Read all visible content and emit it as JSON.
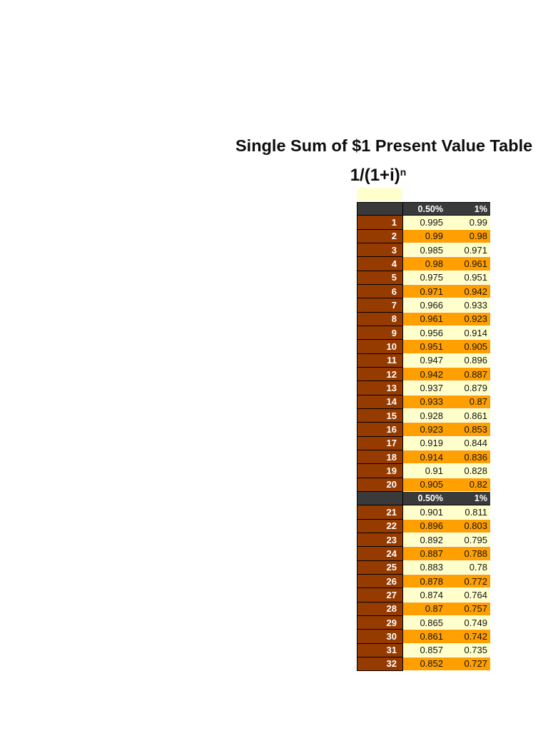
{
  "page": {
    "title": "Single Sum of $1 Present Value Table",
    "formula_base": "1/(1+i)",
    "formula_exponent": "n"
  },
  "colors": {
    "page_bg": "#FFFFFF",
    "header_bg": "#3A3A3A",
    "row_number_bg": "#963B00",
    "row_cream_bg": "#FFFFCC",
    "row_orange_bg": "#FFA000",
    "header_text": "#FFFFFF",
    "value_text": "#111111"
  },
  "table": {
    "column_headers": [
      "0.50%",
      "1%"
    ],
    "repeat_header_after": 20,
    "rows": [
      {
        "period": "1",
        "values": [
          "0.995",
          "0.99"
        ]
      },
      {
        "period": "2",
        "values": [
          "0.99",
          "0.98"
        ]
      },
      {
        "period": "3",
        "values": [
          "0.985",
          "0.971"
        ]
      },
      {
        "period": "4",
        "values": [
          "0.98",
          "0.961"
        ]
      },
      {
        "period": "5",
        "values": [
          "0.975",
          "0.951"
        ]
      },
      {
        "period": "6",
        "values": [
          "0.971",
          "0.942"
        ]
      },
      {
        "period": "7",
        "values": [
          "0.966",
          "0.933"
        ]
      },
      {
        "period": "8",
        "values": [
          "0.961",
          "0.923"
        ]
      },
      {
        "period": "9",
        "values": [
          "0.956",
          "0.914"
        ]
      },
      {
        "period": "10",
        "values": [
          "0.951",
          "0.905"
        ]
      },
      {
        "period": "11",
        "values": [
          "0.947",
          "0.896"
        ]
      },
      {
        "period": "12",
        "values": [
          "0.942",
          "0.887"
        ]
      },
      {
        "period": "13",
        "values": [
          "0.937",
          "0.879"
        ]
      },
      {
        "period": "14",
        "values": [
          "0.933",
          "0.87"
        ]
      },
      {
        "period": "15",
        "values": [
          "0.928",
          "0.861"
        ]
      },
      {
        "period": "16",
        "values": [
          "0.923",
          "0.853"
        ]
      },
      {
        "period": "17",
        "values": [
          "0.919",
          "0.844"
        ]
      },
      {
        "period": "18",
        "values": [
          "0.914",
          "0.836"
        ]
      },
      {
        "period": "19",
        "values": [
          "0.91",
          "0.828"
        ]
      },
      {
        "period": "20",
        "values": [
          "0.905",
          "0.82"
        ]
      },
      {
        "period": "21",
        "values": [
          "0.901",
          "0.811"
        ]
      },
      {
        "period": "22",
        "values": [
          "0.896",
          "0.803"
        ]
      },
      {
        "period": "23",
        "values": [
          "0.892",
          "0.795"
        ]
      },
      {
        "period": "24",
        "values": [
          "0.887",
          "0.788"
        ]
      },
      {
        "period": "25",
        "values": [
          "0.883",
          "0.78"
        ]
      },
      {
        "period": "26",
        "values": [
          "0.878",
          "0.772"
        ]
      },
      {
        "period": "27",
        "values": [
          "0.874",
          "0.764"
        ]
      },
      {
        "period": "28",
        "values": [
          "0.87",
          "0.757"
        ]
      },
      {
        "period": "29",
        "values": [
          "0.865",
          "0.749"
        ]
      },
      {
        "period": "30",
        "values": [
          "0.861",
          "0.742"
        ]
      },
      {
        "period": "31",
        "values": [
          "0.857",
          "0.735"
        ]
      },
      {
        "period": "32",
        "values": [
          "0.852",
          "0.727"
        ]
      }
    ]
  }
}
